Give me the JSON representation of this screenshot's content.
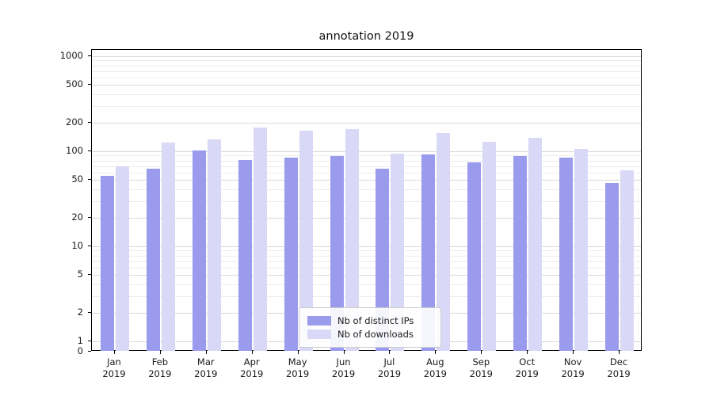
{
  "title": "annotation 2019",
  "legend": {
    "items": [
      {
        "label": "Nb of distinct IPs",
        "color": "#9b9bee"
      },
      {
        "label": "Nb of downloads",
        "color": "#d9d9f7"
      }
    ]
  },
  "axes": {
    "y_tick_labels": [
      "1000",
      "500",
      "200",
      "100",
      "50",
      "20",
      "10",
      "5",
      "2",
      "1",
      "0"
    ],
    "y_tick_values": [
      1000,
      500,
      200,
      100,
      50,
      20,
      10,
      5,
      2,
      1,
      0
    ],
    "minor_y_values": [
      3,
      4,
      6,
      7,
      8,
      9,
      30,
      40,
      60,
      70,
      80,
      90,
      300,
      400,
      600,
      700,
      800,
      900
    ]
  },
  "chart_data": {
    "type": "bar",
    "title": "annotation 2019",
    "scale": "symlog",
    "ylim": [
      0,
      1000
    ],
    "grid": true,
    "legend_position": "lower center",
    "categories": [
      "Jan 2019",
      "Feb 2019",
      "Mar 2019",
      "Apr 2019",
      "May 2019",
      "Jun 2019",
      "Jul 2019",
      "Aug 2019",
      "Sep 2019",
      "Oct 2019",
      "Nov 2019",
      "Dec 2019"
    ],
    "series": [
      {
        "name": "Nb of distinct IPs",
        "color": "#9b9bee",
        "values": [
          55,
          66,
          101,
          81,
          86,
          89,
          66,
          92,
          76,
          89,
          85,
          46
        ]
      },
      {
        "name": "Nb of downloads",
        "color": "#d9d9f7",
        "values": [
          70,
          124,
          134,
          177,
          166,
          171,
          94,
          154,
          126,
          139,
          106,
          63
        ]
      }
    ]
  }
}
